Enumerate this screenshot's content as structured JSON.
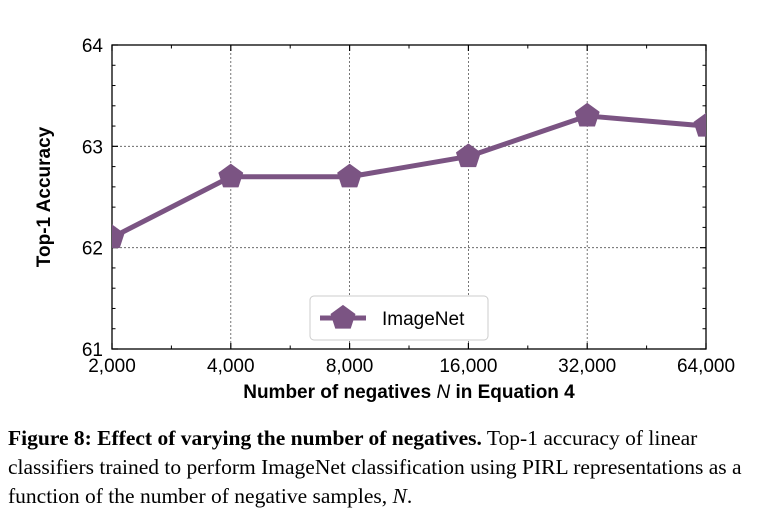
{
  "chart_data": {
    "type": "line",
    "x": [
      "2,000",
      "4,000",
      "8,000",
      "16,000",
      "32,000",
      "64,000"
    ],
    "x_scale": "log2",
    "series": [
      {
        "name": "ImageNet",
        "values": [
          62.1,
          62.7,
          62.7,
          62.9,
          63.3,
          63.2
        ],
        "color": "#7b5483",
        "marker": "pentagon"
      }
    ],
    "y_ticks": [
      "61",
      "62",
      "63",
      "64"
    ],
    "ylim": [
      61,
      64
    ],
    "ylabel": "Top-1 Accuracy",
    "xlabel_prefix": "Number of negatives ",
    "xlabel_var": "N",
    "xlabel_suffix": " in Equation 4",
    "grid": true,
    "legend_position": "bottom-center"
  },
  "caption": {
    "bold": "Figure 8: Effect of varying the number of negatives.",
    "text": " Top-1 accuracy of linear classifiers trained to perform ImageNet classification using PIRL representations as a function of the number of negative samples, ",
    "var": "N",
    "end": "."
  }
}
